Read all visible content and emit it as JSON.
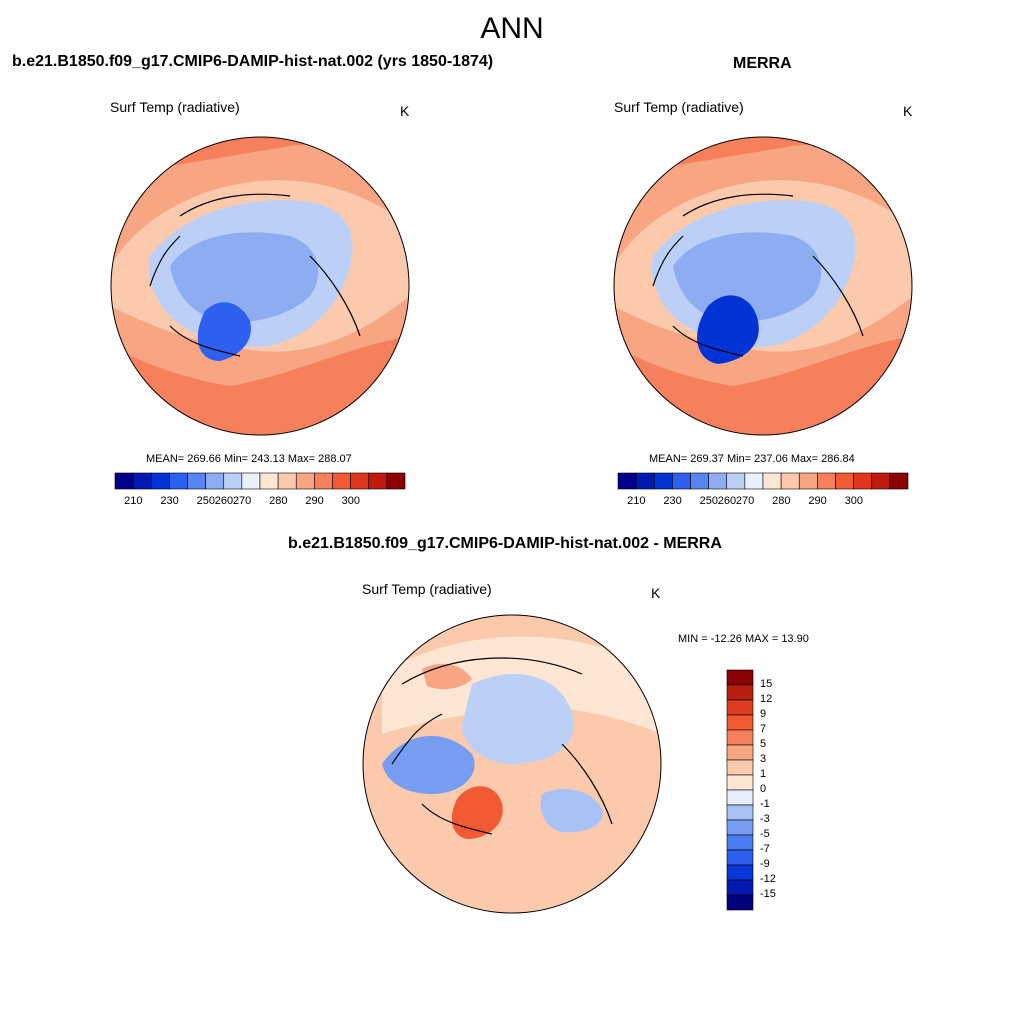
{
  "title": "ANN",
  "panels": [
    {
      "title": "b.e21.B1850.f09_g17.CMIP6-DAMIP-hist-nat.002 (yrs 1850-1874)",
      "variable": "Surf Temp (radiative)",
      "units": "K",
      "stats": "MEAN= 269.66  Min= 243.13  Max= 288.07"
    },
    {
      "title": "MERRA",
      "variable": "Surf Temp (radiative)",
      "units": "K",
      "stats": "MEAN= 269.37  Min= 237.06  Max= 286.84"
    },
    {
      "title": "b.e21.B1850.f09_g17.CMIP6-DAMIP-hist-nat.002 - MERRA",
      "variable": "Surf Temp (radiative)",
      "units": "K",
      "stats": "MIN = -12.26 MAX =  13.90"
    }
  ],
  "colorbar_abs": {
    "colors": [
      "#00008b",
      "#0019b0",
      "#0033d6",
      "#2d5ff0",
      "#5a84f2",
      "#8eacf2",
      "#bcd0f7",
      "#e9f1fc",
      "#fde6d3",
      "#fbc9ab",
      "#f8a583",
      "#f5805b",
      "#f15a32",
      "#e0361d",
      "#c01a0d",
      "#8b0000"
    ],
    "ticks": [
      "210",
      "230",
      "250",
      "260",
      "270",
      "280",
      "290",
      "300"
    ]
  },
  "colorbar_diff": {
    "colors": [
      "#000080",
      "#0019b0",
      "#0a35d8",
      "#2d5ff0",
      "#4a7bf1",
      "#779df3",
      "#a8c2f6",
      "#e6eefb",
      "#fde6d3",
      "#fbc9ab",
      "#f8a583",
      "#f5805b",
      "#f15a32",
      "#dd3b1e",
      "#b81f0f",
      "#8b0000"
    ],
    "ticks": [
      "15",
      "12",
      "9",
      "7",
      "5",
      "3",
      "1",
      "0",
      "-1",
      "-3",
      "-5",
      "-7",
      "-9",
      "-12",
      "-15"
    ]
  },
  "colors": {
    "warm": "#f5805b",
    "cool": "#8eacf2"
  }
}
